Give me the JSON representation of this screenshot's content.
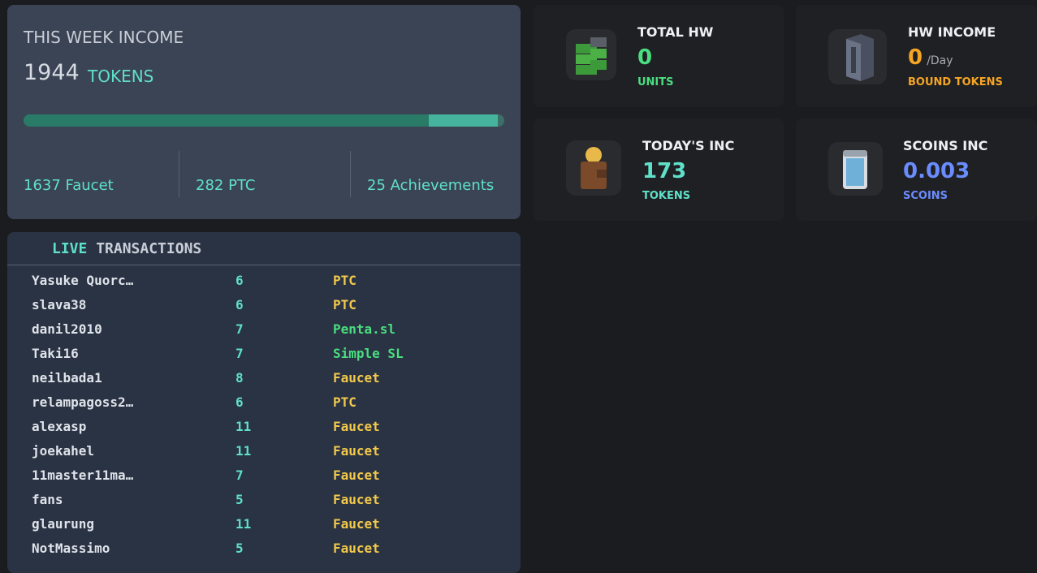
{
  "week_income": {
    "title": "THIS WEEK INCOME",
    "total": 1944,
    "unit": "TOKENS",
    "breakdown": [
      {
        "value": 1637,
        "label": "Faucet"
      },
      {
        "value": 282,
        "label": "PTC"
      },
      {
        "value": 25,
        "label": "Achievements"
      }
    ]
  },
  "stats": [
    {
      "title": "TOTAL HW",
      "value": 0,
      "unit": "UNITS"
    },
    {
      "title": "HW INCOME",
      "value": 0,
      "suffix": "/Day",
      "unit": "BOUND TOKENS"
    },
    {
      "title": "TODAY'S INC",
      "value": 173,
      "unit": "TOKENS"
    },
    {
      "title": "SCOINS INC",
      "value": 0.003,
      "unit": "SCOINS"
    }
  ],
  "live_transactions": {
    "title_highlight": "LIVE",
    "title": "TRANSACTIONS",
    "rows": [
      [
        "Yasuke Quorc…",
        6,
        "PTC"
      ],
      [
        "slava38",
        6,
        "PTC"
      ],
      [
        "danil2010",
        7,
        "Penta.sl"
      ],
      [
        "Taki16",
        7,
        "Simple SL"
      ],
      [
        "neilbada1",
        8,
        "Faucet"
      ],
      [
        "relampagoss2…",
        6,
        "PTC"
      ],
      [
        "alexasp",
        11,
        "Faucet"
      ],
      [
        "joekahel",
        11,
        "Faucet"
      ],
      [
        "11master11ma…",
        7,
        "Faucet"
      ],
      [
        "fans",
        5,
        "Faucet"
      ],
      [
        "glaurung",
        11,
        "Faucet"
      ],
      [
        "NotMassimo",
        5,
        "Faucet"
      ]
    ]
  }
}
